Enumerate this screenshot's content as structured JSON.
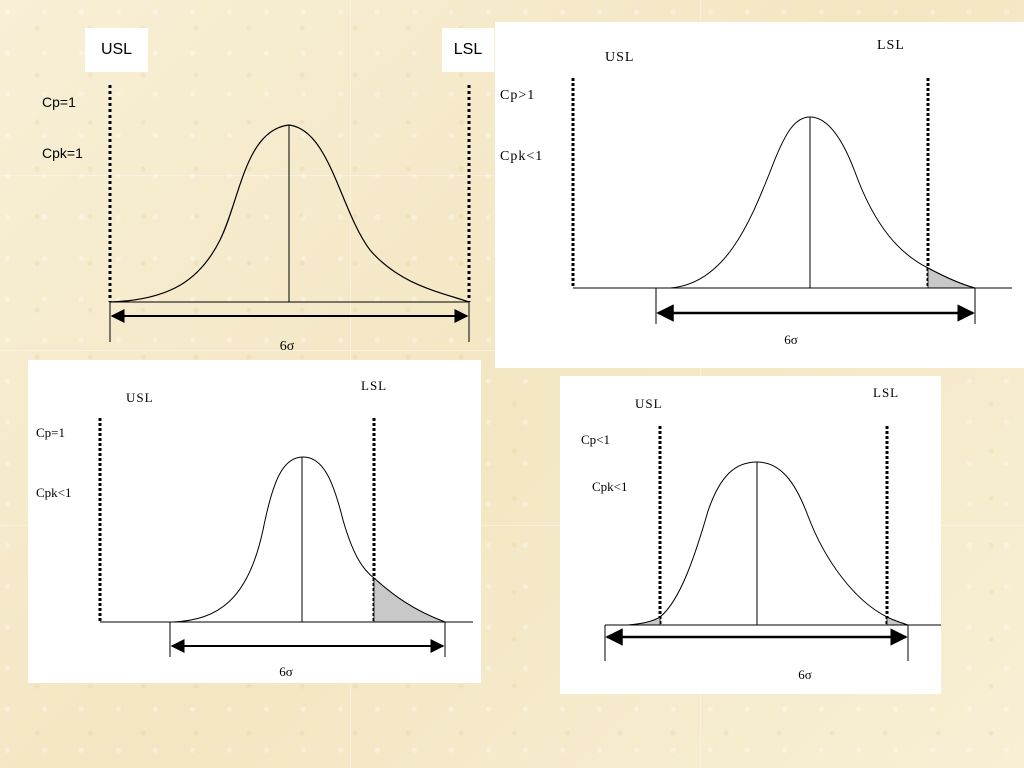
{
  "panels": [
    {
      "usl": "USL",
      "lsl": "LSL",
      "cp": "Cp=1",
      "cpk": "Cpk=1",
      "sigma": "6σ"
    },
    {
      "usl": "USL",
      "lsl": "LSL",
      "cp": "Cp>1",
      "cpk": "Cpk<1",
      "sigma": "6σ"
    },
    {
      "usl": "USL",
      "lsl": "LSL",
      "cp": "Cp=1",
      "cpk": "Cpk<1",
      "sigma": "6σ"
    },
    {
      "usl": "USL",
      "lsl": "LSL",
      "cp": "Cp<1",
      "cpk": "Cpk<1",
      "sigma": "6σ"
    }
  ],
  "colors": {
    "background": "#f6ecce",
    "tail_fill": "#c8c8c8",
    "line": "#000000"
  }
}
